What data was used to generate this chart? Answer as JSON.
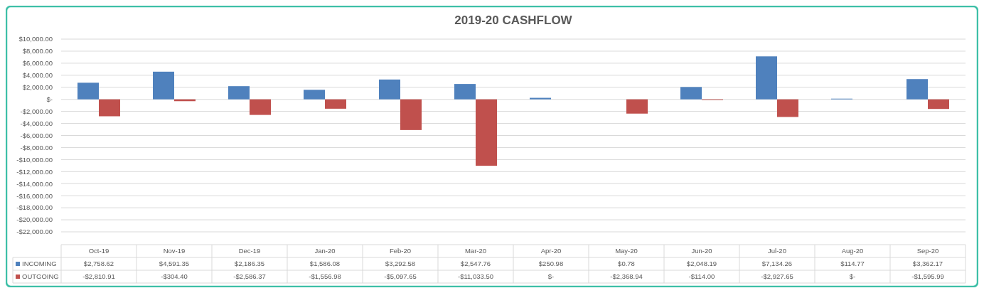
{
  "chart_data": {
    "type": "bar",
    "title": "2019-20 CASHFLOW",
    "categories": [
      "Oct-19",
      "Nov-19",
      "Dec-19",
      "Jan-20",
      "Feb-20",
      "Mar-20",
      "Apr-20",
      "May-20",
      "Jun-20",
      "Jul-20",
      "Aug-20",
      "Sep-20"
    ],
    "series": [
      {
        "name": "INCOMING",
        "color": "#4f81bd",
        "values": [
          2758.62,
          4591.35,
          2186.35,
          1586.08,
          3292.58,
          2547.76,
          250.98,
          0.78,
          2048.19,
          7134.26,
          114.77,
          3362.17
        ],
        "value_labels": [
          "$2,758.62",
          "$4,591.35",
          "$2,186.35",
          "$1,586.08",
          "$3,292.58",
          "$2,547.76",
          "$250.98",
          "$0.78",
          "$2,048.19",
          "$7,134.26",
          "$114.77",
          "$3,362.17"
        ]
      },
      {
        "name": "OUTGOING",
        "color": "#c0504d",
        "values": [
          -2810.91,
          -304.4,
          -2586.37,
          -1556.98,
          -5097.65,
          -11033.5,
          0,
          -2368.94,
          -114.0,
          -2927.65,
          0,
          -1595.99
        ],
        "value_labels": [
          "-$2,810.91",
          "-$304.40",
          "-$2,586.37",
          "-$1,556.98",
          "-$5,097.65",
          "-$11,033.50",
          "$-",
          "-$2,368.94",
          "-$114.00",
          "-$2,927.65",
          "$-",
          "-$1,595.99"
        ]
      }
    ],
    "ylim": [
      -22000,
      10000
    ],
    "yticks": [
      {
        "value": 10000,
        "label": "$10,000.00"
      },
      {
        "value": 8000,
        "label": "$8,000.00"
      },
      {
        "value": 6000,
        "label": "$6,000.00"
      },
      {
        "value": 4000,
        "label": "$4,000.00"
      },
      {
        "value": 2000,
        "label": "$2,000.00"
      },
      {
        "value": 0,
        "label": "$-"
      },
      {
        "value": -2000,
        "label": "-$2,000.00"
      },
      {
        "value": -4000,
        "label": "-$4,000.00"
      },
      {
        "value": -6000,
        "label": "-$6,000.00"
      },
      {
        "value": -8000,
        "label": "-$8,000.00"
      },
      {
        "value": -10000,
        "label": "-$10,000.00"
      },
      {
        "value": -12000,
        "label": "-$12,000.00"
      },
      {
        "value": -14000,
        "label": "-$14,000.00"
      },
      {
        "value": -16000,
        "label": "-$16,000.00"
      },
      {
        "value": -18000,
        "label": "-$18,000.00"
      },
      {
        "value": -20000,
        "label": "-$20,000.00"
      },
      {
        "value": -22000,
        "label": "-$22,000.00"
      }
    ],
    "grid": "y",
    "legend": "bottom"
  }
}
